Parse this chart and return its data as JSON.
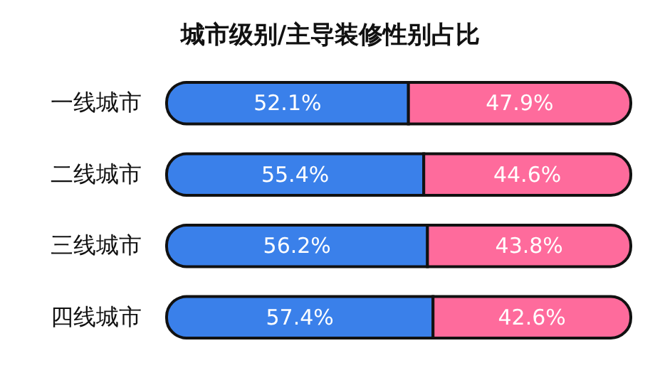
{
  "chart_data": {
    "type": "bar",
    "orientation": "horizontal",
    "stacked": true,
    "title": "城市级别/主导装修性别占比",
    "categories": [
      "一线城市",
      "二线城市",
      "三线城市",
      "四线城市"
    ],
    "series": [
      {
        "color": "#3a80ea",
        "values": [
          52.1,
          55.4,
          56.2,
          57.4
        ],
        "value_labels": [
          "52.1%",
          "55.4%",
          "56.2%",
          "57.4%"
        ]
      },
      {
        "color": "#fe6b9c",
        "values": [
          47.9,
          44.6,
          43.8,
          42.6
        ],
        "value_labels": [
          "47.9%",
          "44.6%",
          "43.8%",
          "42.6%"
        ]
      }
    ],
    "tick_labels": "y"
  }
}
